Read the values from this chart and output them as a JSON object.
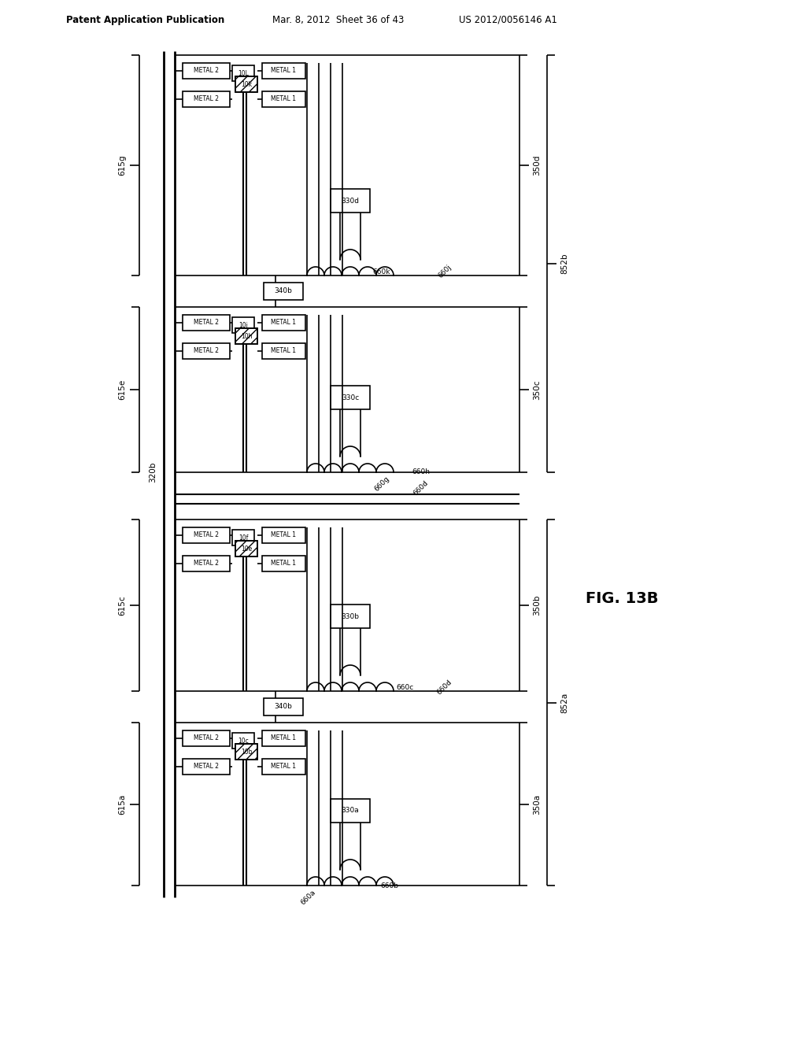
{
  "title_left": "Patent Application Publication",
  "title_mid": "Mar. 8, 2012  Sheet 36 of 43",
  "title_right": "US 2012/0056146 A1",
  "fig_label": "FIG. 13B",
  "background": "#ffffff",
  "line_color": "#000000",
  "text_color": "#000000"
}
